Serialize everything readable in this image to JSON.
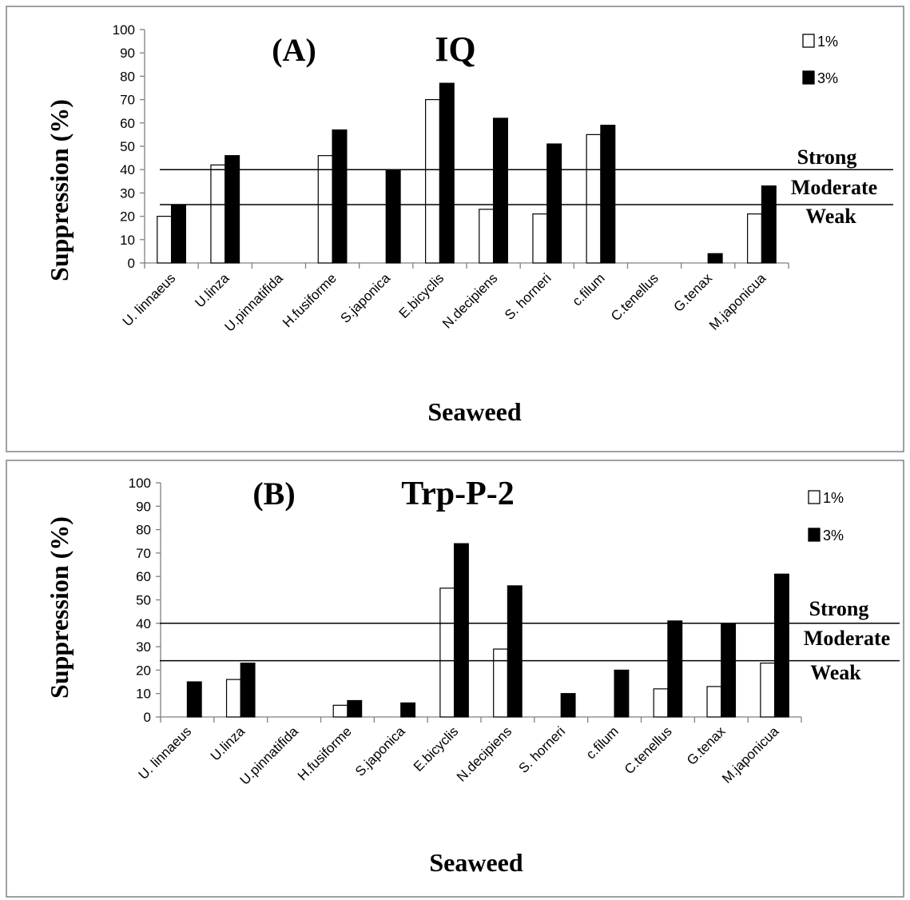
{
  "chart_data": [
    {
      "type": "bar",
      "panel_label": "(A)",
      "title": "IQ",
      "xlabel": "Seaweed",
      "ylabel": "Suppression (%)",
      "ylim": [
        0,
        100
      ],
      "yticks": [
        0,
        10,
        20,
        30,
        40,
        50,
        60,
        70,
        80,
        90,
        100
      ],
      "categories": [
        "U. linnaeus",
        "U.linza",
        "U.pinnatifida",
        "H.fusiforme",
        "S.japonica",
        "E.bicyclis",
        "N.decipiens",
        "S. horneri",
        "c.filum",
        "C.tenellus",
        "G.tenax",
        "M.japonicua"
      ],
      "series": [
        {
          "name": "1%",
          "color": "#ffffff",
          "values": [
            20,
            42,
            0,
            46,
            0,
            70,
            23,
            21,
            55,
            0,
            0,
            21
          ]
        },
        {
          "name": "3%",
          "color": "#000000",
          "values": [
            25,
            46,
            0,
            57,
            40,
            77,
            62,
            51,
            59,
            0,
            4,
            33
          ]
        }
      ],
      "thresholds": [
        {
          "value": 40,
          "label_above": "Strong"
        },
        {
          "value": 25,
          "label_above": "Moderate",
          "label_below": "Weak"
        }
      ],
      "legend_position": "top-right",
      "grid": false
    },
    {
      "type": "bar",
      "panel_label": "(B)",
      "title": "Trp-P-2",
      "xlabel": "Seaweed",
      "ylabel": "Suppression (%)",
      "ylim": [
        0,
        100
      ],
      "yticks": [
        0,
        10,
        20,
        30,
        40,
        50,
        60,
        70,
        80,
        90,
        100
      ],
      "categories": [
        "U. linnaeus",
        "U.linza",
        "U.pinnatifida",
        "H.fusiforme",
        "S.japonica",
        "E.bicyclis",
        "N.decipiens",
        "S. horneri",
        "c.filum",
        "C.tenellus",
        "G.tenax",
        "M.japonicua"
      ],
      "series": [
        {
          "name": "1%",
          "color": "#ffffff",
          "values": [
            0,
            16,
            0,
            5,
            0,
            55,
            29,
            0,
            0,
            12,
            13,
            23
          ]
        },
        {
          "name": "3%",
          "color": "#000000",
          "values": [
            15,
            23,
            0,
            7,
            6,
            74,
            56,
            10,
            20,
            41,
            40,
            61
          ]
        }
      ],
      "thresholds": [
        {
          "value": 40,
          "label_above": "Strong"
        },
        {
          "value": 24,
          "label_above": "Moderate",
          "label_below": "Weak"
        }
      ],
      "legend_position": "top-right",
      "grid": false
    }
  ]
}
